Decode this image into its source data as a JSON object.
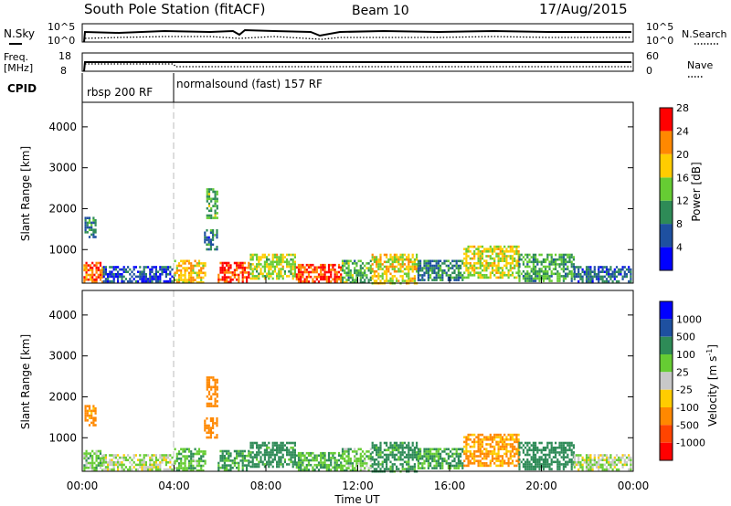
{
  "header": {
    "station": "South Pole Station (fitACF)",
    "beam": "Beam 10",
    "date": "17/Aug/2015"
  },
  "top_strip": {
    "left_label": "N.Sky",
    "left_ticks": [
      "10^5",
      "10^0"
    ],
    "right_ticks": [
      "10^5",
      "10^0"
    ],
    "right_label": "N.Search",
    "right_label_style": "dotted"
  },
  "freq_strip": {
    "left_label_1": "Freq.",
    "left_label_2": "[MHz]",
    "left_ticks": [
      "18",
      "8"
    ],
    "right_ticks": [
      "60",
      "0"
    ],
    "right_label": "Nave",
    "right_label_style": "dotted"
  },
  "cpid": {
    "label": "CPID",
    "programs": [
      {
        "name": "rbsp 200 RF",
        "start_hour": 0,
        "end_hour": 4
      },
      {
        "name": "normalsound (fast) 157 RF",
        "start_hour": 4,
        "end_hour": 24
      }
    ]
  },
  "colors": {
    "power": [
      "#0000ff",
      "#1e50a0",
      "#2e8b57",
      "#66cc33",
      "#ffcc00",
      "#ff8800",
      "#ff0000"
    ],
    "velocity": [
      "#0000ff",
      "#1e50a0",
      "#2e8b57",
      "#66cc33",
      "#c8c8c8",
      "#ffcc00",
      "#ff8800",
      "#ff4400",
      "#ff0000"
    ]
  },
  "chart_data": [
    {
      "type": "heatmap",
      "name": "power",
      "xlabel": "",
      "ylabel": "Slant Range [km]",
      "xlim": [
        0,
        24
      ],
      "ylim": [
        180,
        4600
      ],
      "yticks": [
        "1000",
        "2000",
        "3000",
        "4000"
      ],
      "colorbar": {
        "label": "Power [dB]",
        "ticks": [
          "4",
          "8",
          "12",
          "16",
          "20",
          "24",
          "28"
        ],
        "range": [
          0,
          32
        ]
      },
      "regions": [
        {
          "t0": 0.05,
          "t1": 0.9,
          "r0": 200,
          "r1": 700,
          "value": 26
        },
        {
          "t0": 0.1,
          "t1": 0.6,
          "r0": 1300,
          "r1": 1800,
          "value": 10
        },
        {
          "t0": 0.9,
          "t1": 3.9,
          "r0": 200,
          "r1": 600,
          "value": 6
        },
        {
          "t0": 4.0,
          "t1": 5.4,
          "r0": 200,
          "r1": 750,
          "value": 22
        },
        {
          "t0": 5.3,
          "t1": 5.9,
          "r0": 1000,
          "r1": 1500,
          "value": 9
        },
        {
          "t0": 5.4,
          "t1": 5.9,
          "r0": 1800,
          "r1": 2500,
          "value": 14
        },
        {
          "t0": 5.9,
          "t1": 7.3,
          "r0": 200,
          "r1": 700,
          "value": 28
        },
        {
          "t0": 7.3,
          "t1": 9.3,
          "r0": 300,
          "r1": 900,
          "value": 18
        },
        {
          "t0": 9.3,
          "t1": 11.3,
          "r0": 200,
          "r1": 650,
          "value": 28
        },
        {
          "t0": 11.3,
          "t1": 12.6,
          "r0": 200,
          "r1": 750,
          "value": 14
        },
        {
          "t0": 12.6,
          "t1": 14.6,
          "r0": 200,
          "r1": 900,
          "value": 20
        },
        {
          "t0": 14.6,
          "t1": 16.6,
          "r0": 250,
          "r1": 750,
          "value": 10
        },
        {
          "t0": 16.6,
          "t1": 19.0,
          "r0": 300,
          "r1": 1100,
          "value": 19
        },
        {
          "t0": 19.0,
          "t1": 21.4,
          "r0": 250,
          "r1": 900,
          "value": 13
        },
        {
          "t0": 21.4,
          "t1": 23.9,
          "r0": 200,
          "r1": 600,
          "value": 8
        }
      ]
    },
    {
      "type": "heatmap",
      "name": "velocity",
      "xlabel": "Time UT",
      "ylabel": "Slant Range [km]",
      "xlim": [
        0,
        24
      ],
      "ylim": [
        180,
        4600
      ],
      "xticks": [
        "00:00",
        "04:00",
        "08:00",
        "12:00",
        "16:00",
        "20:00",
        "00:00"
      ],
      "yticks": [
        "1000",
        "2000",
        "3000",
        "4000"
      ],
      "colorbar": {
        "label": "Velocity [m s-1]",
        "ticks": [
          "1000",
          "500",
          "100",
          "25",
          "-25",
          "-100",
          "-500",
          "-1000"
        ]
      },
      "regions": [
        {
          "t0": 0.05,
          "t1": 0.9,
          "r0": 200,
          "r1": 700,
          "value": 60
        },
        {
          "t0": 0.1,
          "t1": 0.6,
          "r0": 1300,
          "r1": 1800,
          "value": -150
        },
        {
          "t0": 0.9,
          "t1": 3.9,
          "r0": 200,
          "r1": 600,
          "value": 20
        },
        {
          "t0": 4.0,
          "t1": 5.4,
          "r0": 200,
          "r1": 750,
          "value": 80
        },
        {
          "t0": 5.3,
          "t1": 5.9,
          "r0": 1000,
          "r1": 1500,
          "value": -200
        },
        {
          "t0": 5.4,
          "t1": 5.9,
          "r0": 1800,
          "r1": 2500,
          "value": -300
        },
        {
          "t0": 5.9,
          "t1": 7.3,
          "r0": 200,
          "r1": 700,
          "value": 120
        },
        {
          "t0": 7.3,
          "t1": 9.3,
          "r0": 300,
          "r1": 900,
          "value": 150
        },
        {
          "t0": 9.3,
          "t1": 11.3,
          "r0": 200,
          "r1": 650,
          "value": 90
        },
        {
          "t0": 11.3,
          "t1": 12.6,
          "r0": 200,
          "r1": 750,
          "value": 70
        },
        {
          "t0": 12.6,
          "t1": 14.6,
          "r0": 200,
          "r1": 900,
          "value": 140
        },
        {
          "t0": 14.6,
          "t1": 16.6,
          "r0": 250,
          "r1": 750,
          "value": 110
        },
        {
          "t0": 16.6,
          "t1": 19.0,
          "r0": 300,
          "r1": 1100,
          "value": -120
        },
        {
          "t0": 19.0,
          "t1": 21.4,
          "r0": 250,
          "r1": 900,
          "value": 300
        },
        {
          "t0": 21.4,
          "t1": 23.9,
          "r0": 200,
          "r1": 600,
          "value": 10
        }
      ]
    }
  ]
}
